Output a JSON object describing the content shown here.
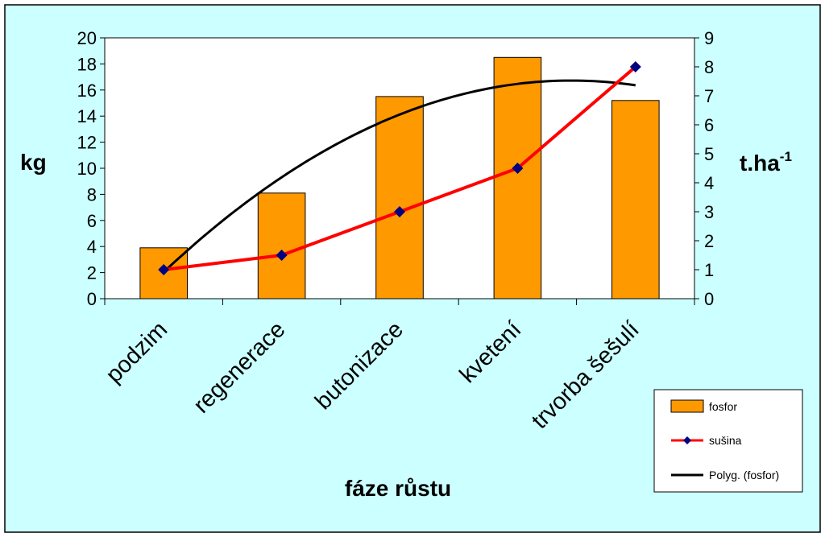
{
  "chart_data": {
    "type": "bar",
    "categories": [
      "podzim",
      "regenerace",
      "butonizace",
      "kvetení",
      "trvorba šešulí"
    ],
    "xlabel": "fáze růstu",
    "ylabel_left": "kg",
    "ylabel_right_base": "t.ha",
    "ylabel_right_sup": "-1",
    "ylim_left": [
      0,
      20
    ],
    "ylim_right": [
      0,
      9
    ],
    "yticks_left": [
      "0",
      "2",
      "4",
      "6",
      "8",
      "10",
      "12",
      "14",
      "16",
      "18",
      "20"
    ],
    "yticks_right": [
      "0",
      "1",
      "2",
      "3",
      "4",
      "5",
      "6",
      "7",
      "8",
      "9"
    ],
    "grid": false,
    "legend_position": "bottom-right",
    "series": [
      {
        "name": "fosfor",
        "kind": "bar",
        "axis": "left",
        "color": "#FF9900",
        "values": [
          3.9,
          8.1,
          15.5,
          18.5,
          15.2
        ]
      },
      {
        "name": "sušina",
        "kind": "line",
        "axis": "right",
        "color": "#FF0000",
        "marker_color": "#000080",
        "values": [
          1.0,
          1.5,
          3.0,
          4.5,
          8.0
        ]
      },
      {
        "name": "Polyg. (fosfor)",
        "kind": "trendline",
        "axis": "left",
        "color": "#000000",
        "values": [
          2.2,
          9.0,
          14.1,
          16.8,
          16.2
        ]
      }
    ],
    "background_color": "#CCFFFF",
    "frame_background_color": "#FFFFFF"
  }
}
